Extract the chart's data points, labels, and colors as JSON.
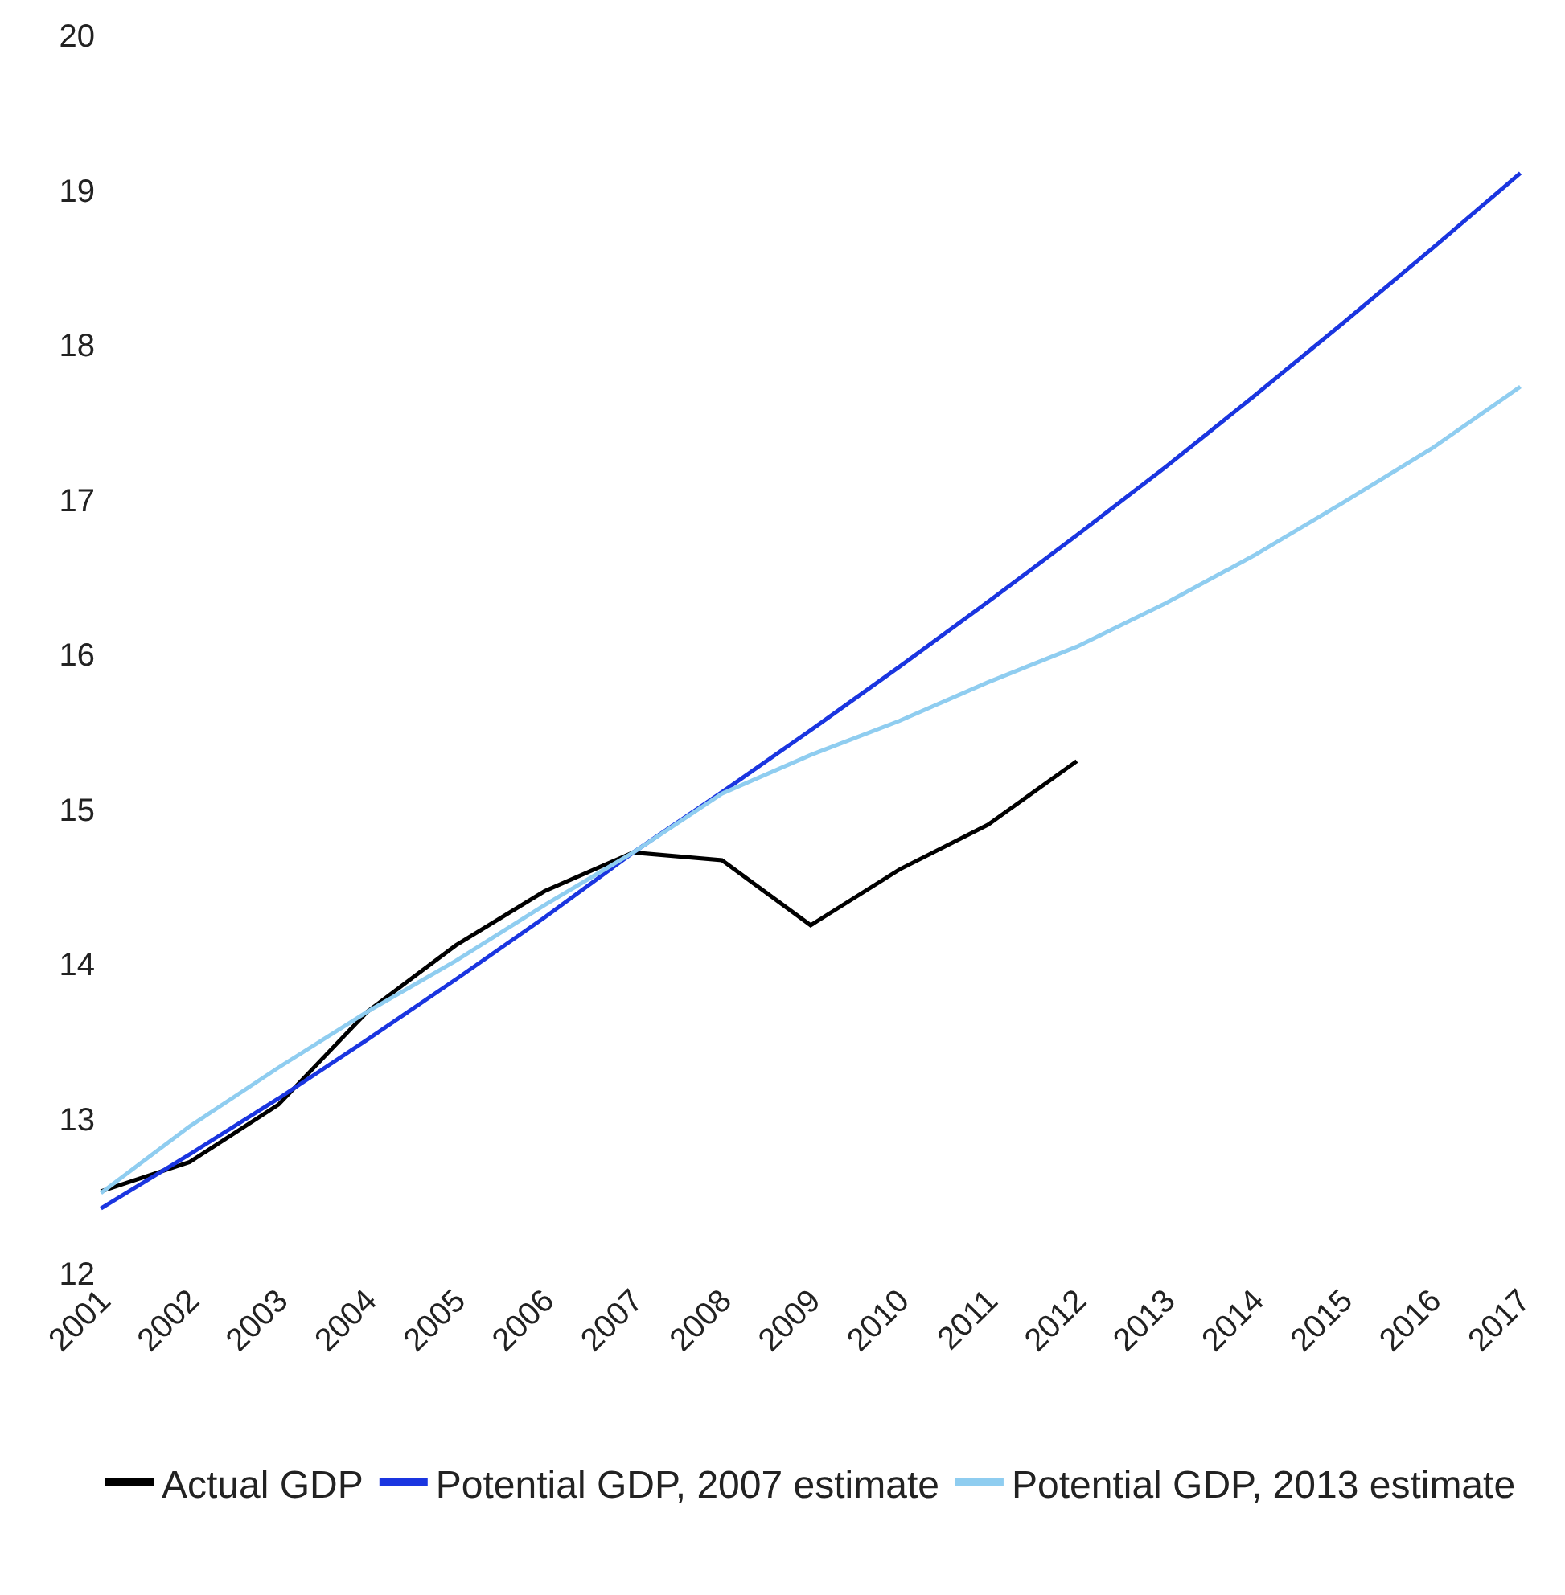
{
  "chart_data": {
    "type": "line",
    "categories": [
      "2001",
      "2002",
      "2003",
      "2004",
      "2005",
      "2006",
      "2007",
      "2008",
      "2009",
      "2010",
      "2011",
      "2012",
      "2013",
      "2014",
      "2015",
      "2016",
      "2017"
    ],
    "series": [
      {
        "name": "Actual GDP",
        "color": "#000000",
        "values": [
          12.53,
          12.72,
          13.09,
          13.69,
          14.12,
          14.47,
          14.72,
          14.67,
          14.25,
          14.61,
          14.9,
          15.31,
          null,
          null,
          null,
          null,
          null
        ]
      },
      {
        "name": "Potential GDP, 2007 estimate",
        "color": "#1a35e0",
        "values": [
          12.42,
          12.77,
          13.13,
          13.51,
          13.9,
          14.3,
          14.72,
          15.11,
          15.51,
          15.92,
          16.34,
          16.77,
          17.21,
          17.67,
          18.14,
          18.62,
          19.11
        ]
      },
      {
        "name": "Potential GDP, 2013 estimate",
        "color": "#8fcdf0",
        "values": [
          12.52,
          12.95,
          13.33,
          13.69,
          14.02,
          14.38,
          14.72,
          15.1,
          15.35,
          15.57,
          15.82,
          16.05,
          16.33,
          16.64,
          16.98,
          17.33,
          17.73
        ]
      }
    ],
    "ylim": [
      12,
      20
    ],
    "yticks": [
      12,
      13,
      14,
      15,
      16,
      17,
      18,
      19,
      20
    ],
    "legend": "bottom",
    "marker": "none",
    "line_style": "solid"
  }
}
